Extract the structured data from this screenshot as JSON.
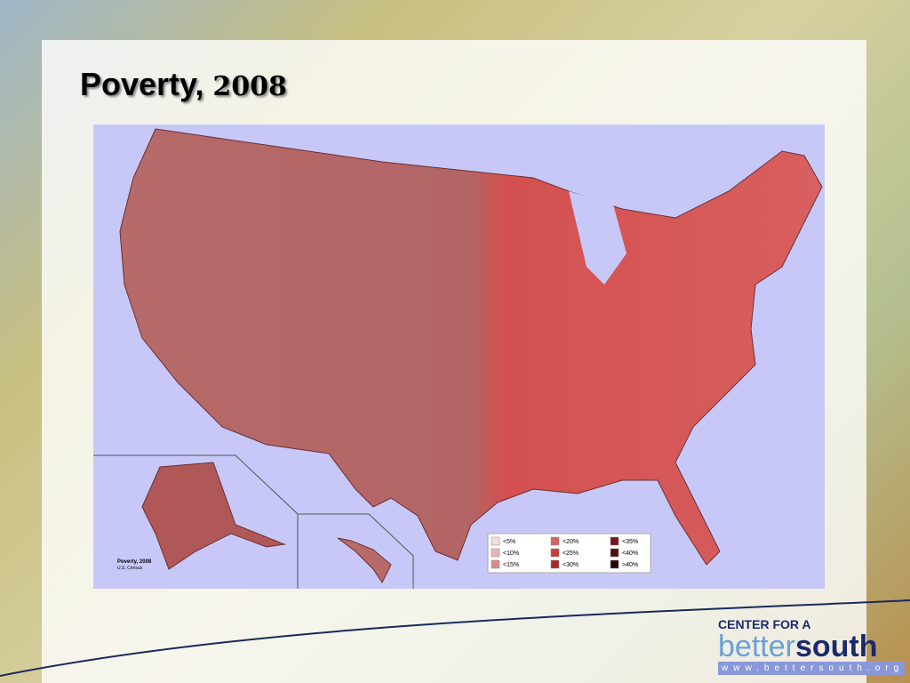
{
  "header": {
    "title": "Poverty,",
    "year": "2008"
  },
  "map": {
    "caption": "Poverty, 2008",
    "source": "U.S. Census",
    "legend": [
      {
        "label": "<5%",
        "color": "#f3dcdc"
      },
      {
        "label": "<10%",
        "color": "#e8b4b4"
      },
      {
        "label": "<15%",
        "color": "#d98c8c"
      },
      {
        "label": "<20%",
        "color": "#d46464"
      },
      {
        "label": "<25%",
        "color": "#c83c3c"
      },
      {
        "label": "<30%",
        "color": "#a82828"
      },
      {
        "label": "<35%",
        "color": "#7a1818"
      },
      {
        "label": "<40%",
        "color": "#501010"
      },
      {
        "label": ">40%",
        "color": "#2a0606"
      }
    ]
  },
  "logo": {
    "line1": "CENTER FOR A",
    "better": "better",
    "south": "south",
    "url": "www.bettersouth.org"
  }
}
